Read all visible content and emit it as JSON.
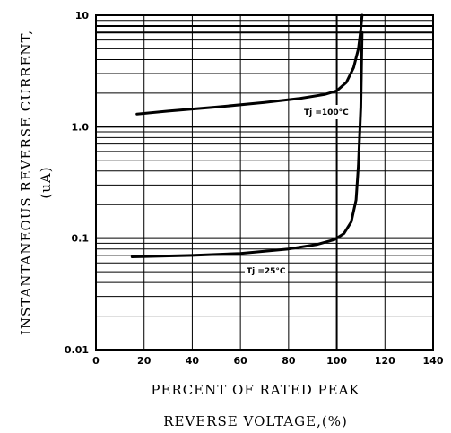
{
  "chart_data": {
    "type": "line",
    "title": "",
    "ylabel_line1": "INSTANTANEOUS REVERSE CURRENT,",
    "ylabel_line2": "(uA)",
    "xlabel_line1": "PERCENT OF RATED PEAK",
    "xlabel_line2": "REVERSE VOLTAGE,(%)",
    "xlim": [
      0,
      140
    ],
    "ylim": [
      0.01,
      10
    ],
    "yscale": "log",
    "grid": true,
    "x_ticks": [
      0,
      20,
      40,
      60,
      80,
      100,
      120,
      140
    ],
    "x_tick_labels": [
      "0",
      "20",
      "40",
      "60",
      "80",
      "100",
      "120",
      "140"
    ],
    "y_ticks": [
      0.01,
      0.1,
      1.0,
      10
    ],
    "y_tick_labels": [
      "0.01",
      "0.1",
      "1.0",
      "10"
    ],
    "series": [
      {
        "name": "Tj=100°C",
        "label_text": "Tj =100°C",
        "x": [
          17,
          30,
          50,
          70,
          85,
          95,
          100,
          104,
          107,
          109,
          110,
          110.5
        ],
        "y": [
          1.3,
          1.38,
          1.5,
          1.65,
          1.8,
          1.95,
          2.1,
          2.5,
          3.4,
          5.0,
          7.5,
          10
        ]
      },
      {
        "name": "Tj=25°C",
        "label_text": "Tj =25°C",
        "x": [
          15,
          40,
          60,
          80,
          92,
          99,
          103,
          106,
          108,
          109,
          110,
          110.5
        ],
        "y": [
          0.068,
          0.07,
          0.073,
          0.08,
          0.088,
          0.097,
          0.11,
          0.14,
          0.22,
          0.45,
          1.5,
          7
        ]
      }
    ],
    "vertical_line_x": 100
  }
}
